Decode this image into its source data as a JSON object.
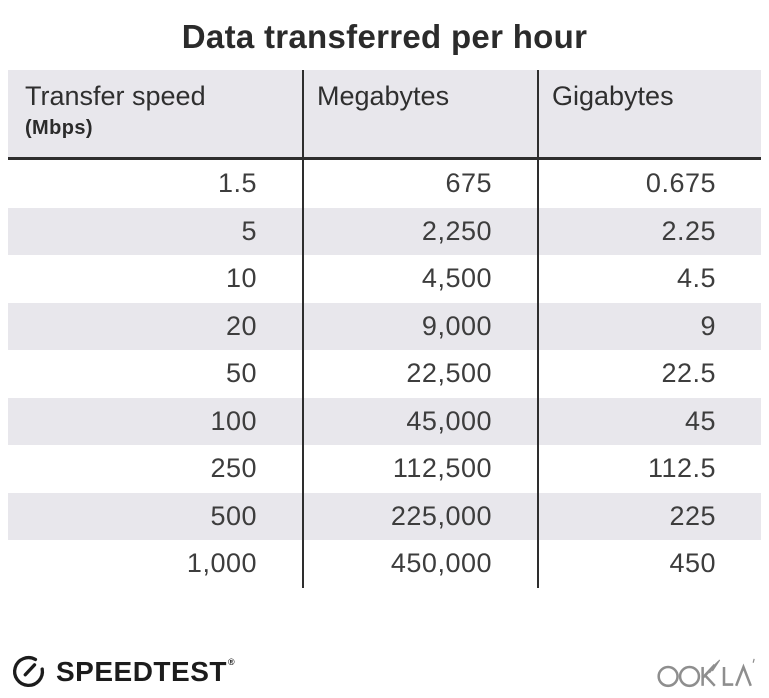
{
  "title": "Data transferred per hour",
  "table": {
    "columns": [
      {
        "label": "Transfer speed",
        "sublabel": "(Mbps)"
      },
      {
        "label": "Megabytes"
      },
      {
        "label": "Gigabytes"
      }
    ],
    "rows": [
      [
        "1.5",
        "675",
        "0.675"
      ],
      [
        "5",
        "2,250",
        "2.25"
      ],
      [
        "10",
        "4,500",
        "4.5"
      ],
      [
        "20",
        "9,000",
        "9"
      ],
      [
        "50",
        "22,500",
        "22.5"
      ],
      [
        "100",
        "45,000",
        "45"
      ],
      [
        "250",
        "112,500",
        "112.5"
      ],
      [
        "500",
        "225,000",
        "225"
      ],
      [
        "1,000",
        "450,000",
        "450"
      ]
    ]
  },
  "footer": {
    "speedtest_label": "SPEEDTEST",
    "speedtest_mark": "®",
    "ookla_label": "OOKLA"
  },
  "colors": {
    "stripe": "#e8e7ec",
    "header_bg": "#e8e7ec",
    "divider": "#2e2e2e",
    "title_text": "#2b2b2b",
    "cell_text": "#3d3d3d",
    "speedtest_black": "#1c1c1c",
    "ookla_gray": "#8e8e8e"
  },
  "chart_data": {
    "type": "table",
    "title": "Data transferred per hour",
    "columns": [
      "Transfer speed (Mbps)",
      "Megabytes",
      "Gigabytes"
    ],
    "rows": [
      [
        1.5,
        675,
        0.675
      ],
      [
        5,
        2250,
        2.25
      ],
      [
        10,
        4500,
        4.5
      ],
      [
        20,
        9000,
        9
      ],
      [
        50,
        22500,
        22.5
      ],
      [
        100,
        45000,
        45
      ],
      [
        250,
        112500,
        112.5
      ],
      [
        500,
        225000,
        225
      ],
      [
        1000,
        450000,
        450
      ]
    ]
  }
}
